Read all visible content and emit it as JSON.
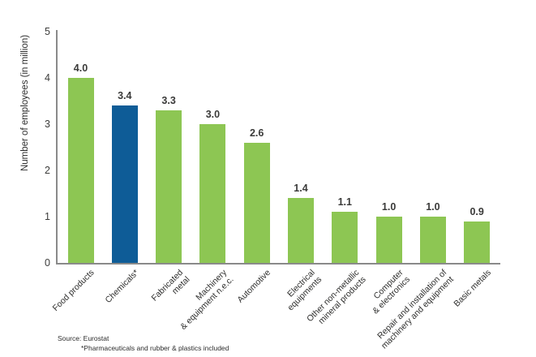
{
  "chart_data": {
    "type": "bar",
    "title": "",
    "ylabel": "Number of employees (in million)",
    "xlabel": "",
    "ylim": [
      0,
      5
    ],
    "yticks": [
      0,
      1,
      2,
      3,
      4,
      5
    ],
    "grid": false,
    "legend": null,
    "categories": [
      [
        "Food products"
      ],
      [
        "Chemicals*"
      ],
      [
        "Fabricated",
        "metal"
      ],
      [
        "Machinery",
        "& equipment n.e.c."
      ],
      [
        "Automotive"
      ],
      [
        "Electrical",
        "equipments"
      ],
      [
        "Other non-metallic",
        "mineral products"
      ],
      [
        "Computer",
        "& electronics"
      ],
      [
        "Repair and installation of",
        "machinery and equipment"
      ],
      [
        "Basic metals"
      ]
    ],
    "values": [
      4.0,
      3.4,
      3.3,
      3.0,
      2.6,
      1.4,
      1.1,
      1.0,
      1.0,
      0.9
    ],
    "value_labels": [
      "4.0",
      "3.4",
      "3.3",
      "3.0",
      "2.6",
      "1.4",
      "1.1",
      "1.0",
      "1.0",
      "0.9"
    ],
    "bar_color": "#8dc653",
    "highlight_color": "#0e5c97",
    "highlight_index": 1,
    "axis_color": "#8a8a8a"
  },
  "footer": {
    "source_line": "Source: Eurostat",
    "note_line": "*Pharmaceuticals and rubber & plastics included"
  }
}
